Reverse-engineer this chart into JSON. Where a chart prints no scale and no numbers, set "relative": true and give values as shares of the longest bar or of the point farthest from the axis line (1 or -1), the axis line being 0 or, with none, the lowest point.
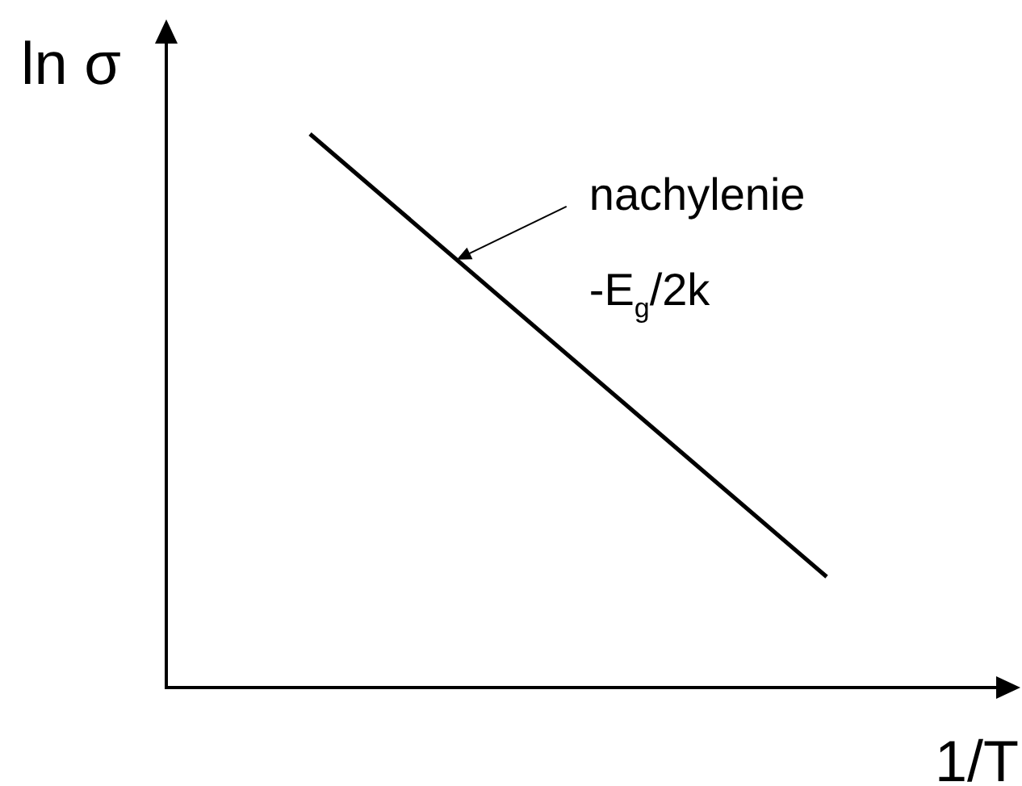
{
  "chart_data": {
    "type": "line",
    "xlabel": "1/T",
    "ylabel": "ln σ",
    "relative": true,
    "categories": [
      null,
      null
    ],
    "series": [
      {
        "color": "#000000",
        "values": [
          1,
          0.2
        ]
      }
    ],
    "annotations": [
      "nachylenie",
      "-E$_{g}$/2k"
    ]
  }
}
